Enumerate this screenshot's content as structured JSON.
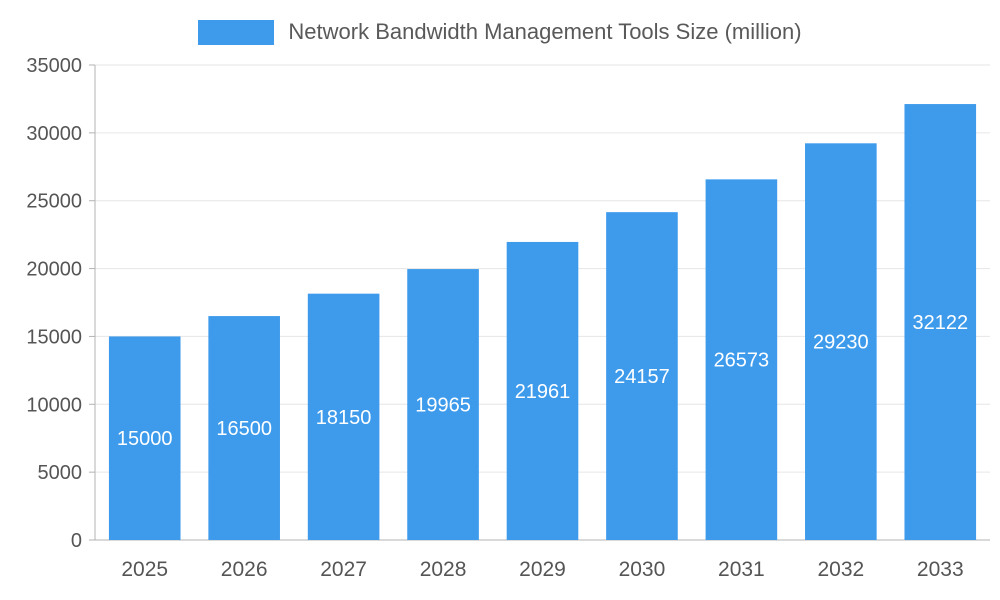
{
  "chart_data": {
    "type": "bar",
    "title": "Network Bandwidth Management Tools Size (million)",
    "categories": [
      "2025",
      "2026",
      "2027",
      "2028",
      "2029",
      "2030",
      "2031",
      "2032",
      "2033"
    ],
    "values": [
      15000,
      16500,
      18150,
      19965,
      21961,
      24157,
      26573,
      29230,
      32122
    ],
    "xlabel": "",
    "ylabel": "",
    "ylim": [
      0,
      35000
    ],
    "ytick_step": 5000,
    "yticks": [
      0,
      5000,
      10000,
      15000,
      20000,
      25000,
      30000,
      35000
    ],
    "grid": true,
    "legend_position": "top",
    "bar_color": "#3E9BEC",
    "value_label_color": "#FFFFFF",
    "axis_text_color": "#555555",
    "grid_color": "#E6E6E6",
    "axis_line_color": "#B3B3B3",
    "background_color": "#FFFFFF"
  }
}
